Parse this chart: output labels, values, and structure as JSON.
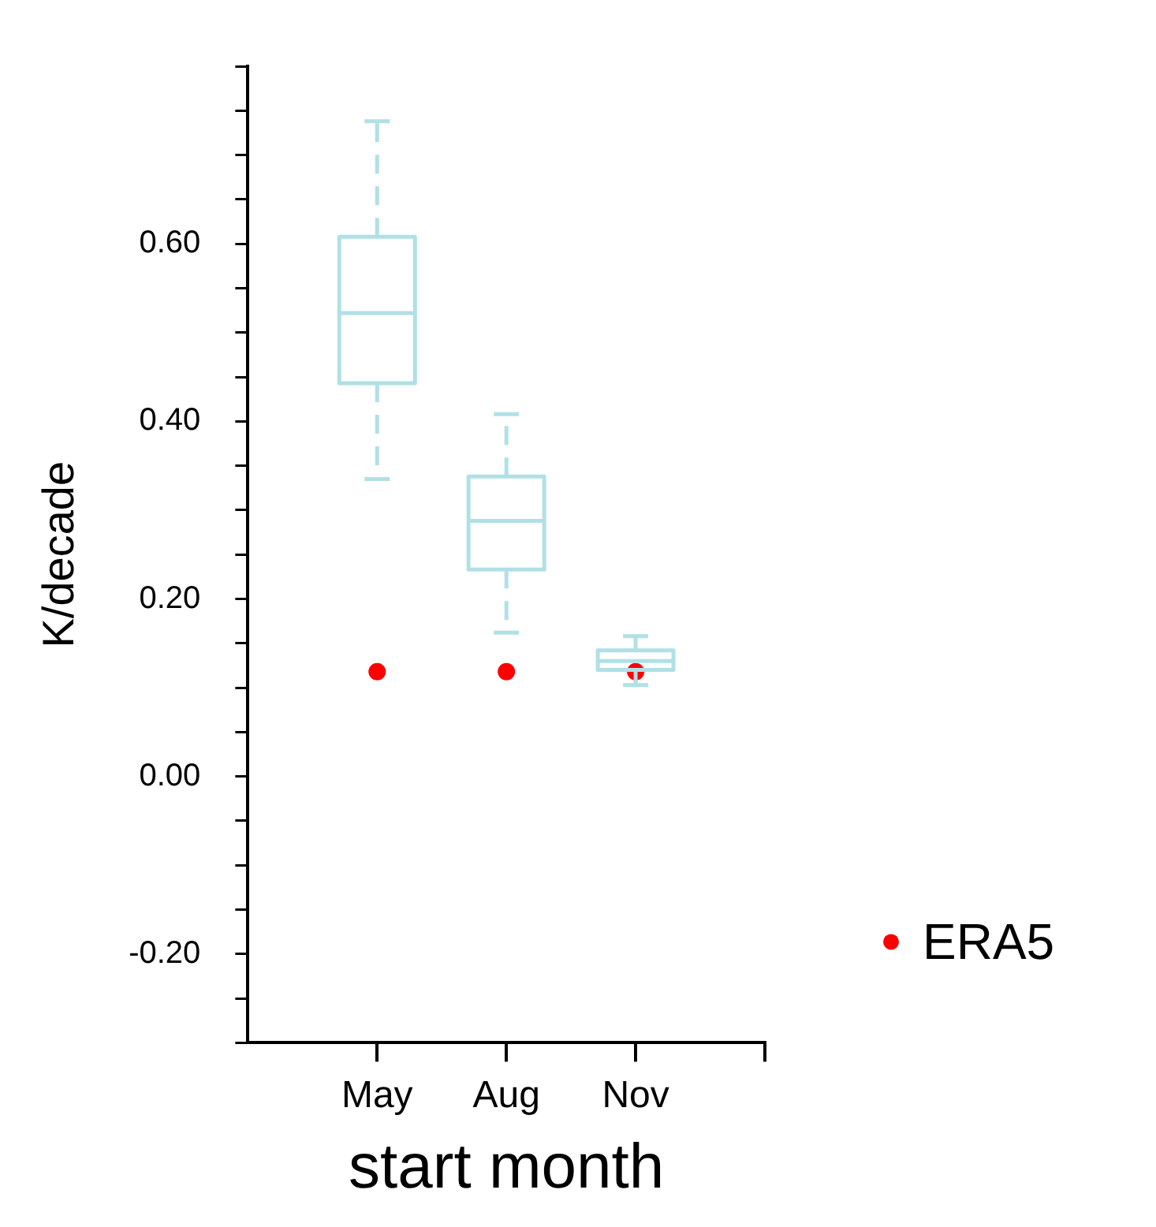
{
  "chart_data": {
    "type": "box",
    "xlabel": "start month",
    "ylabel": "K/decade",
    "categories": [
      "May",
      "Aug",
      "Nov"
    ],
    "ylim": [
      -0.3,
      0.8
    ],
    "yticks": [
      {
        "value": -0.3,
        "label": null
      },
      {
        "value": -0.25,
        "label": null
      },
      {
        "value": -0.2,
        "label": "-0.20"
      },
      {
        "value": -0.15,
        "label": null
      },
      {
        "value": -0.1,
        "label": null
      },
      {
        "value": -0.05,
        "label": null
      },
      {
        "value": 0,
        "label": "0.00"
      },
      {
        "value": 0.05,
        "label": null
      },
      {
        "value": 0.1,
        "label": null
      },
      {
        "value": 0.15,
        "label": null
      },
      {
        "value": 0.2,
        "label": "0.20"
      },
      {
        "value": 0.25,
        "label": null
      },
      {
        "value": 0.3,
        "label": null
      },
      {
        "value": 0.35,
        "label": null
      },
      {
        "value": 0.4,
        "label": "0.40"
      },
      {
        "value": 0.45,
        "label": null
      },
      {
        "value": 0.5,
        "label": null
      },
      {
        "value": 0.55,
        "label": null
      },
      {
        "value": 0.6,
        "label": "0.60"
      },
      {
        "value": 0.65,
        "label": null
      },
      {
        "value": 0.7,
        "label": null
      },
      {
        "value": 0.75,
        "label": null
      },
      {
        "value": 0.8,
        "label": null
      }
    ],
    "series": [
      {
        "color": "#b0e0e6",
        "line_style": "dashed",
        "boxes": [
          {
            "low": 0.335,
            "q1": 0.443,
            "median": 0.522,
            "q3": 0.608,
            "high": 0.738
          },
          {
            "low": 0.162,
            "q1": 0.233,
            "median": 0.288,
            "q3": 0.338,
            "high": 0.408
          },
          {
            "low": 0.103,
            "q1": 0.12,
            "median": 0.13,
            "q3": 0.142,
            "high": 0.158
          }
        ]
      },
      {
        "type": "scatter",
        "name": "ERA5",
        "color": "#ff0000",
        "marker": "circle",
        "x": [
          "May",
          "Aug",
          "Nov"
        ],
        "values": [
          0.118,
          0.118,
          0.118
        ]
      }
    ],
    "grid": false,
    "legend": "right"
  }
}
